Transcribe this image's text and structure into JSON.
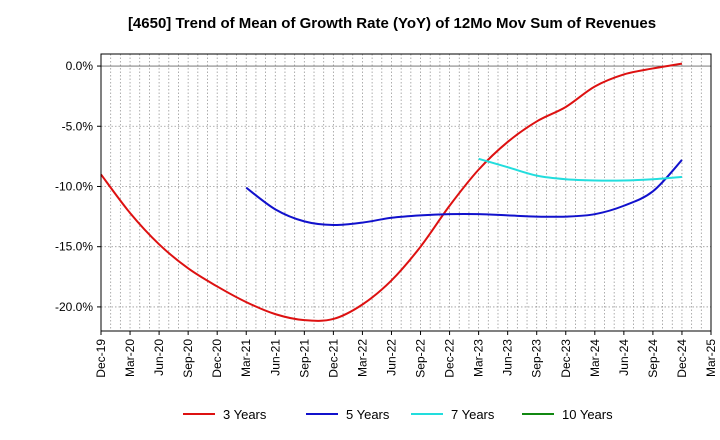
{
  "chart_data": {
    "type": "line",
    "title": "[4650]  Trend of Mean of Growth Rate (YoY) of 12Mo Mov Sum of Revenues",
    "xlabel": "",
    "ylabel": "",
    "ylim": [
      -22,
      1
    ],
    "yticks": [
      0,
      -5,
      -10,
      -15,
      -20
    ],
    "ytick_labels": [
      "0.0%",
      "-5.0%",
      "-10.0%",
      "-15.0%",
      "-20.0%"
    ],
    "x_categories": [
      "Dec-19",
      "Mar-20",
      "Jun-20",
      "Sep-20",
      "Dec-20",
      "Mar-21",
      "Jun-21",
      "Sep-21",
      "Dec-21",
      "Mar-22",
      "Jun-22",
      "Sep-22",
      "Dec-22",
      "Mar-23",
      "Jun-23",
      "Sep-23",
      "Dec-23",
      "Mar-24",
      "Jun-24",
      "Sep-24",
      "Dec-24",
      "Mar-25"
    ],
    "grid": true,
    "legend_position": "bottom",
    "series": [
      {
        "name": "3 Years",
        "color": "#dd1111",
        "values": [
          -9.0,
          -12.2,
          -14.8,
          -16.8,
          -18.3,
          -19.6,
          -20.6,
          -21.1,
          -21.0,
          -19.8,
          -17.8,
          -15.0,
          -11.6,
          -8.6,
          -6.3,
          -4.6,
          -3.4,
          -1.7,
          -0.7,
          -0.2,
          0.2,
          null
        ]
      },
      {
        "name": "5 Years",
        "color": "#1111cc",
        "values": [
          null,
          null,
          null,
          null,
          null,
          -10.1,
          -11.9,
          -12.9,
          -13.2,
          -13.0,
          -12.6,
          -12.4,
          -12.3,
          -12.3,
          -12.4,
          -12.5,
          -12.5,
          -12.3,
          -11.6,
          -10.4,
          -7.8,
          null
        ]
      },
      {
        "name": "7 Years",
        "color": "#22dddd",
        "values": [
          null,
          null,
          null,
          null,
          null,
          null,
          null,
          null,
          null,
          null,
          null,
          null,
          null,
          -7.7,
          -8.4,
          -9.1,
          -9.4,
          -9.5,
          -9.5,
          -9.4,
          -9.2,
          null
        ]
      },
      {
        "name": "10 Years",
        "color": "#118811",
        "values": [
          null,
          null,
          null,
          null,
          null,
          null,
          null,
          null,
          null,
          null,
          null,
          null,
          null,
          null,
          null,
          null,
          null,
          null,
          null,
          null,
          null,
          null
        ]
      }
    ]
  }
}
